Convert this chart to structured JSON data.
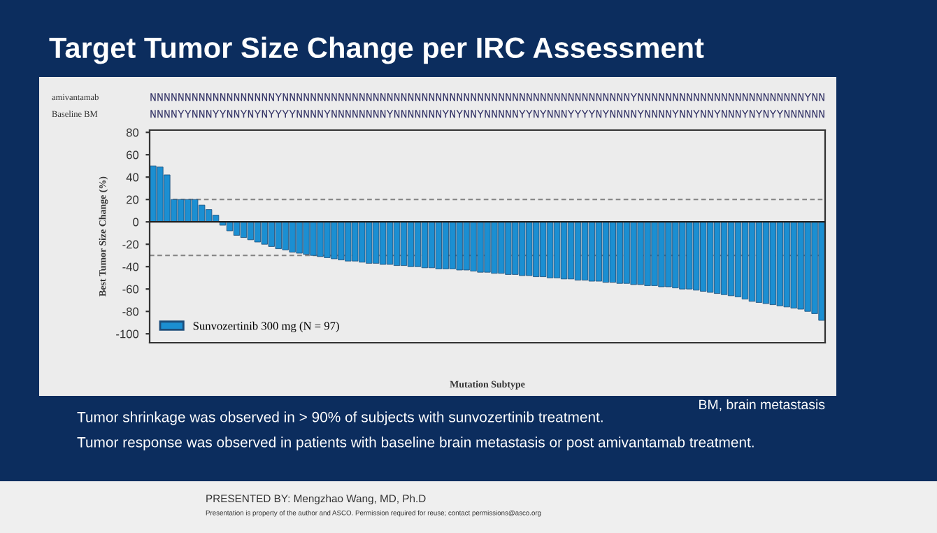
{
  "chart_data": {
    "type": "bar",
    "title": "Target Tumor Size Change per IRC Assessment",
    "xlabel": "Mutation Subtype",
    "ylabel": "Best Tumor Size Change (%)",
    "categories": [
      null,
      null,
      null,
      null,
      null,
      null,
      null,
      null,
      null,
      null,
      null,
      null,
      null,
      null,
      null,
      null,
      null,
      null,
      null,
      null,
      null,
      null,
      null,
      null,
      null,
      null,
      null,
      null,
      null,
      null,
      null,
      null,
      null,
      null,
      null,
      null,
      null,
      null,
      null,
      null,
      null,
      null,
      null,
      null,
      null,
      null,
      null,
      null,
      null,
      null,
      null,
      null,
      null,
      null,
      null,
      null,
      null,
      null,
      null,
      null,
      null,
      null,
      null,
      null,
      null,
      null,
      null,
      null,
      null,
      null,
      null,
      null,
      null,
      null,
      null,
      null,
      null,
      null,
      null,
      null,
      null,
      null,
      null,
      null,
      null,
      null,
      null,
      null,
      null,
      null,
      null,
      null,
      null,
      null,
      null,
      null,
      null
    ],
    "series": [
      {
        "name": "Sunvozertinib 300 mg (N = 97)",
        "color": "#1b8fd2",
        "values": [
          50,
          49,
          42,
          20,
          20,
          20,
          20,
          15,
          11,
          6,
          -3,
          -8,
          -12,
          -14,
          -16,
          -18,
          -20,
          -22,
          -24,
          -25,
          -27,
          -28,
          -29,
          -30,
          -31,
          -32,
          -33,
          -34,
          -35,
          -35,
          -36,
          -37,
          -37,
          -38,
          -38,
          -39,
          -39,
          -40,
          -40,
          -41,
          -41,
          -42,
          -42,
          -42,
          -43,
          -43,
          -44,
          -45,
          -45,
          -46,
          -46,
          -47,
          -47,
          -48,
          -48,
          -49,
          -49,
          -50,
          -50,
          -51,
          -51,
          -52,
          -52,
          -53,
          -53,
          -54,
          -54,
          -55,
          -55,
          -56,
          -56,
          -57,
          -57,
          -58,
          -58,
          -59,
          -60,
          -60,
          -61,
          -62,
          -63,
          -64,
          -65,
          -66,
          -67,
          -69,
          -71,
          -72,
          -73,
          -74,
          -75,
          -76,
          -77,
          -78,
          -80,
          -82,
          -88
        ]
      }
    ],
    "ylim": [
      -108,
      82
    ],
    "yticks": [
      -100,
      -80,
      -60,
      -40,
      -20,
      0,
      20,
      40,
      60,
      80
    ],
    "ref_lines": [
      {
        "axis": "y",
        "value": 20,
        "color": "#888888",
        "line_style": "dashed"
      },
      {
        "axis": "y",
        "value": -30,
        "color": "#888888",
        "line_style": "dashed"
      }
    ],
    "legend": "bottom left",
    "grid": false,
    "annotations": [
      "amivantamab",
      "Baseline BM",
      "NNNNNNNNNNNNNNNNNNYNNNNNNNNNNNNNNNNNNNNNNNNNNNNNNNNNNNNNNNNNNNNNNNNNNYNNNNNNNNNNNNNNNNNNNNNNNNYNN",
      "NNNNYYNNNYYNNYNYNYYYYNNNNYNNNNNNNNYNNNNNNNYNYNNYNNNNNYYNYNNNYYYYNYNNNNYNNNNYNNYNNYNNNYNYNYYNNNNNN",
      "BM, brain metastasis",
      "Tumor shrinkage was observed in > 90% of subjects with sunvozertinib treatment.",
      "Tumor response was observed in patients with baseline brain metastasis or post amivantamab treatment.",
      "PRESENTED BY: Mengzhao Wang, MD, Ph.D",
      "Presentation is property of the author and ASCO. Permission required for reuse; contact permissions@asco.org"
    ]
  }
}
